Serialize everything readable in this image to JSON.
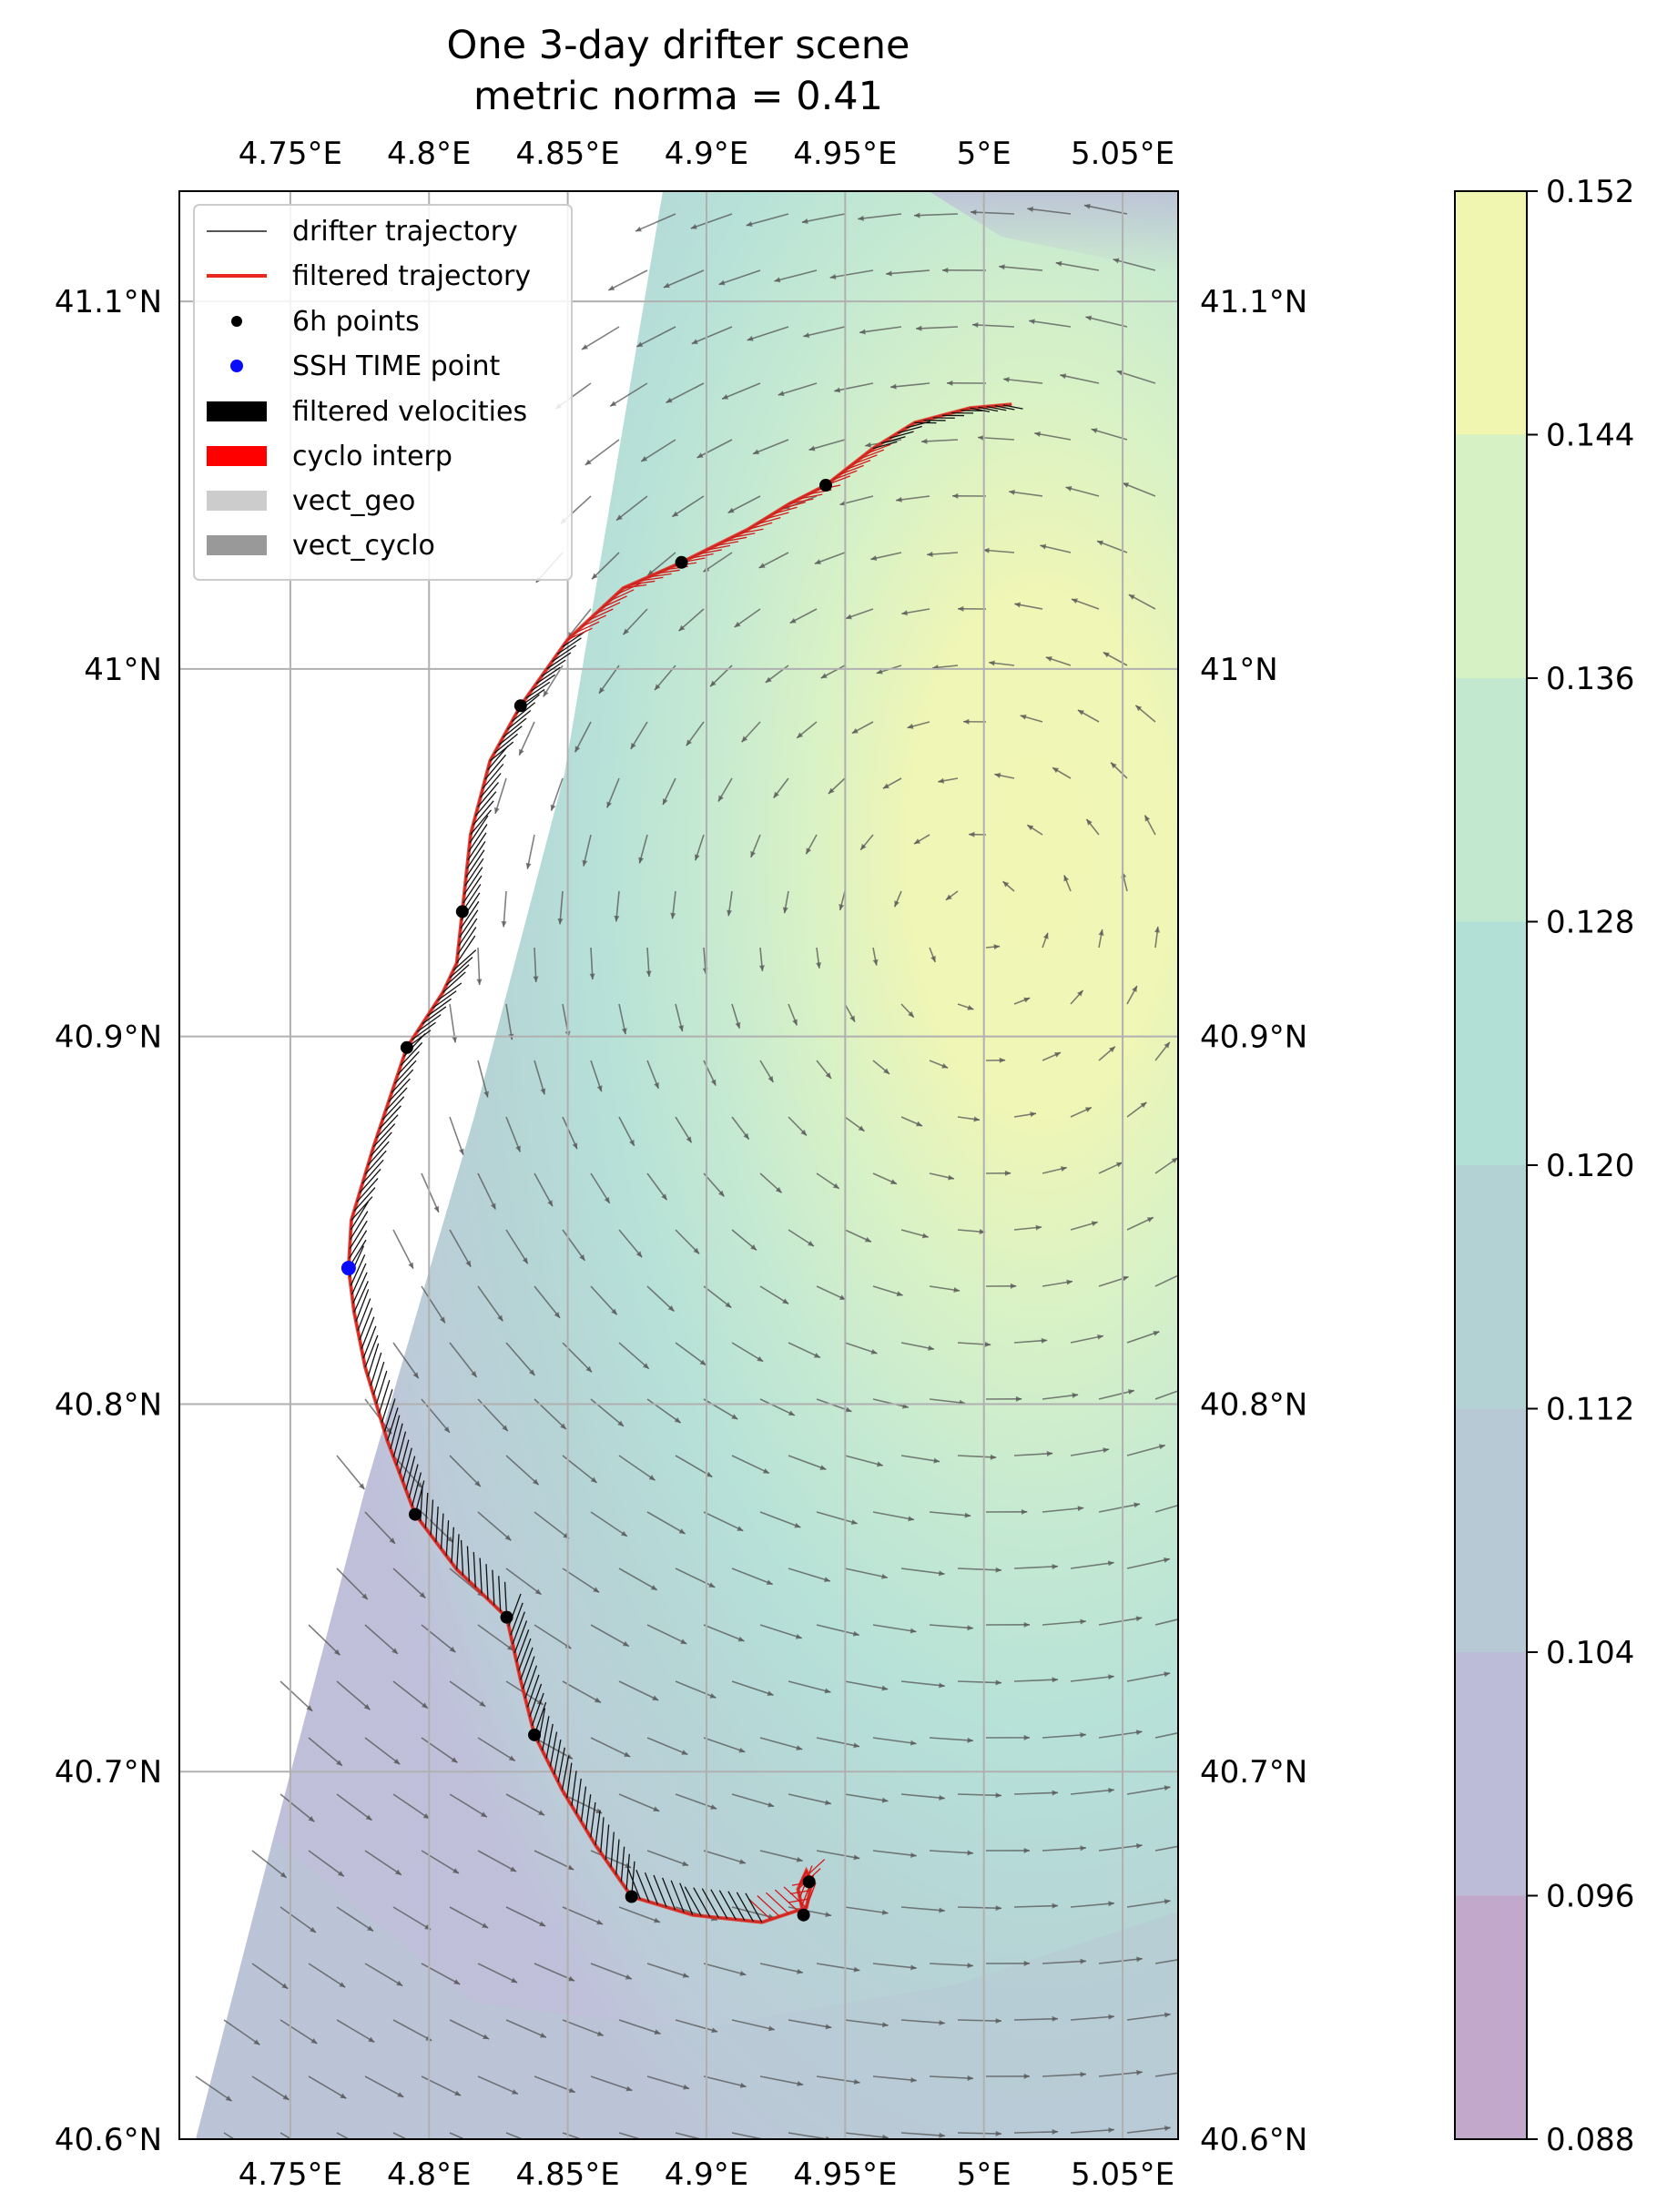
{
  "chart_data": {
    "type": "map",
    "title": "One 3-day drifter scene",
    "subtitle": "metric norma = 0.41",
    "xlim": [
      4.71,
      5.07
    ],
    "ylim": [
      40.6,
      41.13
    ],
    "x_ticks": [
      4.75,
      4.8,
      4.85,
      4.9,
      4.95,
      5.0,
      5.05
    ],
    "x_tick_labels": [
      "4.75°E",
      "4.8°E",
      "4.85°E",
      "4.9°E",
      "4.95°E",
      "5°E",
      "5.05°E"
    ],
    "y_ticks": [
      40.6,
      40.7,
      40.8,
      40.9,
      41.0,
      41.1
    ],
    "y_tick_labels": [
      "40.6°N",
      "40.7°N",
      "40.8°N",
      "40.9°N",
      "41°N",
      "41.1°N"
    ],
    "grid": true,
    "colorbar": {
      "ticks": [
        "0.088",
        "0.096",
        "0.104",
        "0.112",
        "0.120",
        "0.128",
        "0.136",
        "0.144",
        "0.152"
      ],
      "colors": [
        "#c2a9cc",
        "#bcbcd8",
        "#b8c9d6",
        "#b2d2d4",
        "#b3e0d6",
        "#c2e8cf",
        "#d6f1c3",
        "#f0f5b0"
      ]
    },
    "legend": {
      "placement": "top-left",
      "entries": [
        "drifter trajectory",
        "filtered trajectory",
        "6h points",
        "SSH TIME point",
        "filtered velocities",
        "cyclo interp",
        "vect_geo",
        "vect_cyclo"
      ]
    },
    "trajectory": [
      [
        4.935,
        40.661
      ],
      [
        4.933,
        40.668
      ],
      [
        4.936,
        40.673
      ],
      [
        4.938,
        40.67
      ],
      [
        4.936,
        40.663
      ],
      [
        4.92,
        40.659
      ],
      [
        4.895,
        40.661
      ],
      [
        4.873,
        40.666
      ],
      [
        4.86,
        40.68
      ],
      [
        4.848,
        40.695
      ],
      [
        4.838,
        40.71
      ],
      [
        4.833,
        40.725
      ],
      [
        4.828,
        40.742
      ],
      [
        4.81,
        40.755
      ],
      [
        4.795,
        40.77
      ],
      [
        4.785,
        40.79
      ],
      [
        4.777,
        40.81
      ],
      [
        4.773,
        40.825
      ],
      [
        4.771,
        40.837
      ],
      [
        4.772,
        40.85
      ],
      [
        4.78,
        40.87
      ],
      [
        4.792,
        40.897
      ],
      [
        4.805,
        40.912
      ],
      [
        4.81,
        40.92
      ],
      [
        4.812,
        40.934
      ],
      [
        4.815,
        40.955
      ],
      [
        4.822,
        40.975
      ],
      [
        4.833,
        40.99
      ],
      [
        4.85,
        41.008
      ],
      [
        4.87,
        41.022
      ],
      [
        4.891,
        41.029
      ],
      [
        4.915,
        41.038
      ],
      [
        4.93,
        41.045
      ],
      [
        4.943,
        41.05
      ],
      [
        4.96,
        41.06
      ],
      [
        4.975,
        41.067
      ],
      [
        4.995,
        41.071
      ],
      [
        5.01,
        41.072
      ]
    ],
    "points_6h": [
      [
        4.935,
        40.661
      ],
      [
        4.937,
        40.67
      ],
      [
        4.873,
        40.666
      ],
      [
        4.838,
        40.71
      ],
      [
        4.828,
        40.742
      ],
      [
        4.795,
        40.77
      ],
      [
        4.792,
        40.897
      ],
      [
        4.812,
        40.934
      ],
      [
        4.833,
        40.99
      ],
      [
        4.891,
        41.029
      ],
      [
        4.943,
        41.05
      ]
    ],
    "ssh_time_point": [
      4.771,
      40.837
    ]
  }
}
